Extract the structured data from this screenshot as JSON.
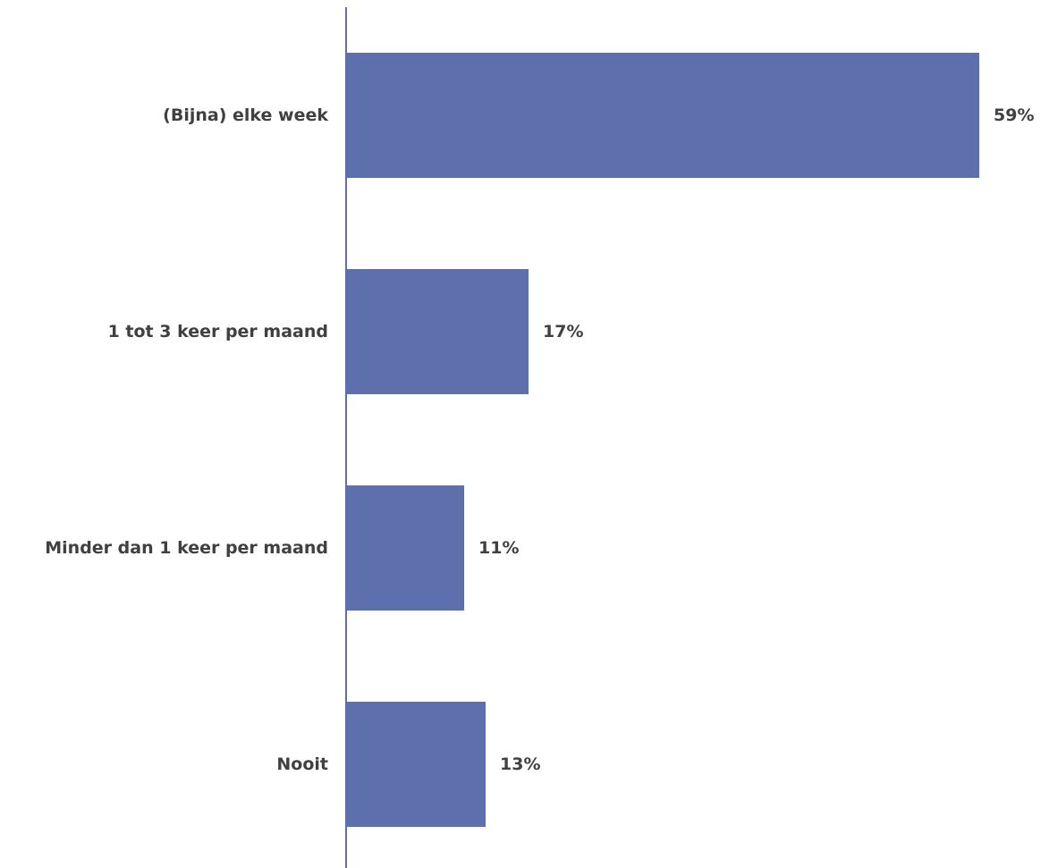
{
  "chart_data": {
    "type": "bar",
    "orientation": "horizontal",
    "categories": [
      "(Bijna) elke week",
      "1 tot 3 keer per maand",
      "Minder dan 1 keer per maand",
      "Nooit"
    ],
    "values": [
      59,
      17,
      11,
      13
    ],
    "value_labels": [
      "59%",
      "17%",
      "11%",
      "13%"
    ],
    "unit": "%",
    "xlim": [
      0,
      59
    ],
    "grid": false,
    "legend": "none",
    "title": "",
    "xlabel": "",
    "ylabel": ""
  },
  "colors": {
    "bar": "#5e6fad",
    "axis": "#5e6fad",
    "text": "#404040"
  }
}
